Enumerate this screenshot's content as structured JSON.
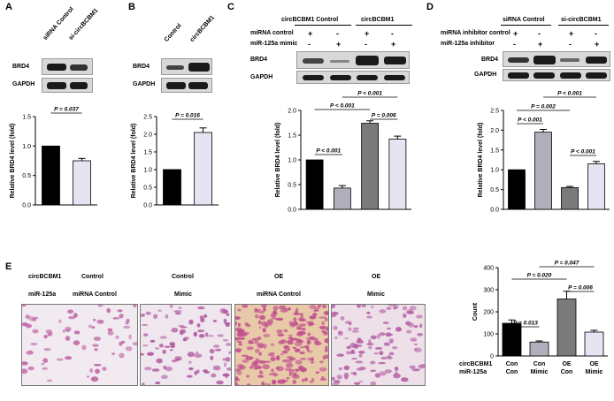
{
  "panels": {
    "A": {
      "letter": "A",
      "lanes": [
        "siRNA Control",
        "si-circBCBM1"
      ],
      "rows": [
        "BRD4",
        "GAPDH"
      ]
    },
    "B": {
      "letter": "B",
      "lanes": [
        "Control",
        "circBCBM1"
      ],
      "rows": [
        "BRD4",
        "GAPDH"
      ]
    },
    "C": {
      "letter": "C",
      "group_headers": [
        "circBCBM1 Control",
        "circBCBM1"
      ],
      "cond_rows": [
        {
          "label": "miRNA control",
          "signs": [
            "+",
            "-",
            "+",
            "-"
          ]
        },
        {
          "label": "miR-125a mimic",
          "signs": [
            "-",
            "+",
            "-",
            "+"
          ]
        }
      ],
      "rows": [
        "BRD4",
        "GAPDH"
      ]
    },
    "D": {
      "letter": "D",
      "group_headers": [
        "siRNA Control",
        "si-circBCBM1"
      ],
      "cond_rows": [
        {
          "label": "miRNA inhibitor control",
          "signs": [
            "+",
            "-",
            "+",
            "-"
          ]
        },
        {
          "label": "miR-125a inhibitor",
          "signs": [
            "-",
            "+",
            "-",
            "+"
          ]
        }
      ],
      "rows": [
        "BRD4",
        "GAPDH"
      ]
    },
    "E": {
      "letter": "E",
      "row_labels": [
        "circBCBM1",
        "miR-125a"
      ],
      "columns": [
        {
          "top": "Control",
          "bottom": "miRNA Control"
        },
        {
          "top": "Control",
          "bottom": "Mimic"
        },
        {
          "top": "OE",
          "bottom": "miRNA Control"
        },
        {
          "top": "OE",
          "bottom": "Mimic"
        }
      ]
    }
  },
  "colors": {
    "black": "#000000",
    "light": "#e4e4f2",
    "dark_gray": "#7a7a7a",
    "mid_gray": "#b0b0bc"
  },
  "chart_data": [
    {
      "id": "A",
      "type": "bar",
      "categories": [
        "siRNA Control",
        "si-circBCBM1"
      ],
      "values": [
        1.0,
        0.75
      ],
      "errors": [
        0,
        0.04
      ],
      "colors": [
        "#000000",
        "#e4e4f2"
      ],
      "ylabel": "Relative BRD4 level (fold)",
      "ylim": [
        0,
        1.5
      ],
      "yticks": [
        "0.0",
        "0.5",
        "1.0",
        "1.5"
      ],
      "annotations": [
        {
          "text": "P = 0.037",
          "from": 0,
          "to": 1
        }
      ]
    },
    {
      "id": "B",
      "type": "bar",
      "categories": [
        "Control",
        "circBCBM1"
      ],
      "values": [
        1.0,
        2.05
      ],
      "errors": [
        0,
        0.13
      ],
      "colors": [
        "#000000",
        "#e4e4f2"
      ],
      "ylabel": "Relative BRD4 level (fold)",
      "ylim": [
        0,
        2.5
      ],
      "yticks": [
        "0.0",
        "0.5",
        "1.0",
        "1.5",
        "2.0",
        "2.5"
      ],
      "annotations": [
        {
          "text": "P = 0.016",
          "from": 0,
          "to": 1
        }
      ]
    },
    {
      "id": "C",
      "type": "bar",
      "categories": [
        "1",
        "2",
        "3",
        "4"
      ],
      "values": [
        1.0,
        0.43,
        1.74,
        1.42
      ],
      "errors": [
        0,
        0.05,
        0.05,
        0.06
      ],
      "colors": [
        "#000000",
        "#b0b0bc",
        "#7a7a7a",
        "#e4e4f2"
      ],
      "ylabel": "Relative BRD4 level (fold)",
      "ylim": [
        0,
        2.0
      ],
      "yticks": [
        "0.0",
        "0.5",
        "1.0",
        "1.5",
        "2.0"
      ],
      "annotations": [
        {
          "text": "P < 0.001",
          "from": 0,
          "to": 1
        },
        {
          "text": "P = 0.006",
          "from": 2,
          "to": 3
        },
        {
          "text": "P < 0.001",
          "from": 0,
          "to": 2
        },
        {
          "text": "P < 0.001",
          "from": 1,
          "to": 3
        }
      ]
    },
    {
      "id": "D",
      "type": "bar",
      "categories": [
        "1",
        "2",
        "3",
        "4"
      ],
      "values": [
        1.0,
        1.95,
        0.55,
        1.15
      ],
      "errors": [
        0,
        0.07,
        0.03,
        0.06
      ],
      "colors": [
        "#000000",
        "#b0b0bc",
        "#7a7a7a",
        "#e4e4f2"
      ],
      "ylabel": "Relative BRD4 level (fold)",
      "ylim": [
        0,
        2.5
      ],
      "yticks": [
        "0.0",
        "0.5",
        "1.0",
        "1.5",
        "2.0",
        "2.5"
      ],
      "annotations": [
        {
          "text": "P < 0.001",
          "from": 0,
          "to": 1
        },
        {
          "text": "P < 0.001",
          "from": 2,
          "to": 3
        },
        {
          "text": "P = 0.002",
          "from": 0,
          "to": 2
        },
        {
          "text": "P < 0.001",
          "from": 1,
          "to": 3
        }
      ]
    },
    {
      "id": "E",
      "type": "bar",
      "categories": [
        "Con/Con",
        "Con/Mimic",
        "OE/Con",
        "OE/Mimic"
      ],
      "xlabels_top": [
        "Con",
        "Con",
        "OE",
        "OE"
      ],
      "xlabels_bottom": [
        "Con",
        "Mimic",
        "Con",
        "Mimic"
      ],
      "row_labels": [
        "circBCBM1",
        "miR-125a"
      ],
      "values": [
        148,
        63,
        258,
        108
      ],
      "errors": [
        15,
        5,
        35,
        8
      ],
      "colors": [
        "#000000",
        "#b0b0bc",
        "#7a7a7a",
        "#e4e4f2"
      ],
      "ylabel": "Count",
      "ylim": [
        0,
        400
      ],
      "yticks": [
        "0",
        "100",
        "200",
        "300",
        "400"
      ],
      "annotations": [
        {
          "text": "P = 0.013",
          "from": 0,
          "to": 1
        },
        {
          "text": "P = 0.006",
          "from": 2,
          "to": 3
        },
        {
          "text": "P = 0.020",
          "from": 0,
          "to": 2
        },
        {
          "text": "P = 0.047",
          "from": 1,
          "to": 3
        }
      ]
    }
  ]
}
